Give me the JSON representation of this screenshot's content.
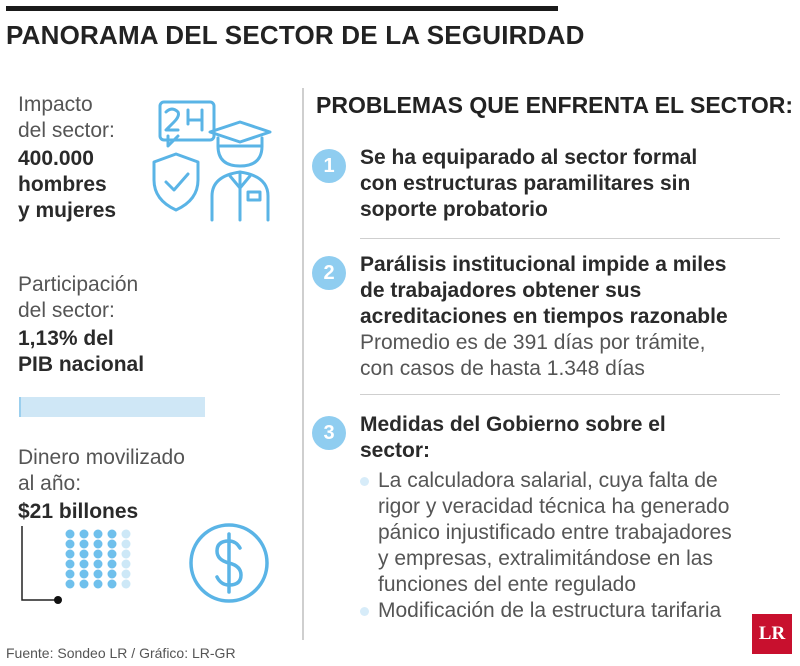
{
  "header": {
    "title": "PANORAMA DEL SECTOR DE LA SEGUIRDAD"
  },
  "stats": [
    {
      "label_lines": [
        "Impacto",
        "del sector:"
      ],
      "value_lines": [
        "400.000",
        "hombres",
        "y mujeres"
      ],
      "icon": "security-guard-24h-icon"
    },
    {
      "label_lines": [
        "Participación",
        "del sector:"
      ],
      "value_lines": [
        "1,13% del",
        "PIB nacional"
      ],
      "share_percent": 1.13
    },
    {
      "label_lines": [
        "Dinero movilizado",
        "al año:"
      ],
      "value_lines": [
        "$21 billones"
      ],
      "icon": "dollar-coin-icon"
    }
  ],
  "problems": {
    "title": "PROBLEMAS QUE ENFRENTA EL SECTOR:",
    "items": [
      {
        "number": "1",
        "heading_lines": [
          "Se ha equiparado al sector formal",
          "con estructuras paramilitares sin",
          "soporte probatorio"
        ]
      },
      {
        "number": "2",
        "heading_lines": [
          "Parálisis institucional impide a miles",
          "de trabajadores obtener sus",
          "acreditaciones en tiempos razonable"
        ],
        "detail_lines": [
          "Promedio es de 391 días por trámite,",
          "con casos de hasta 1.348 días"
        ]
      },
      {
        "number": "3",
        "heading_lines": [
          "Medidas del Gobierno sobre el",
          "sector:"
        ],
        "bullets": [
          {
            "lines": [
              "La calculadora salarial, cuya falta de",
              "rigor y veracidad técnica ha generado",
              "pánico injustificado entre trabajadores",
              "y empresas, extralimitándose en las",
              "funciones del ente regulado"
            ]
          },
          {
            "lines": [
              "Modificación de la estructura tarifaria"
            ]
          }
        ]
      }
    ]
  },
  "footer": {
    "source": "Fuente: Sondeo LR / Gráfico: LR-GR",
    "logo": "LR"
  },
  "colors": {
    "accent": "#8fcdf0",
    "icon_stroke": "#5ab4e6",
    "logo": "#c8102e"
  }
}
